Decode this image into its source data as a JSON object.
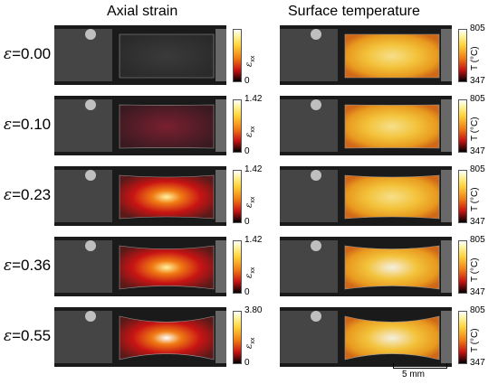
{
  "titles": {
    "left": "Axial strain",
    "right": "Surface temperature"
  },
  "rows": [
    {
      "label": "=0.00",
      "strain_max_label": "",
      "strain_min_label": "0",
      "temp_max_label": "805",
      "temp_min_label": "347",
      "neck": 0.0,
      "strain_intensity": 0.0,
      "temp_intensity": 0.55
    },
    {
      "label": "=0.10",
      "strain_max_label": "1.42",
      "strain_min_label": "0",
      "temp_max_label": "805",
      "temp_min_label": "347",
      "neck": 0.05,
      "strain_intensity": 0.15,
      "temp_intensity": 0.6
    },
    {
      "label": "=0.23",
      "strain_max_label": "1.42",
      "strain_min_label": "0",
      "temp_max_label": "805",
      "temp_min_label": "347",
      "neck": 0.25,
      "strain_intensity": 0.55,
      "temp_intensity": 0.75
    },
    {
      "label": "=0.36",
      "strain_max_label": "1.42",
      "strain_min_label": "0",
      "temp_max_label": "805",
      "temp_min_label": "347",
      "neck": 0.45,
      "strain_intensity": 0.8,
      "temp_intensity": 0.85
    },
    {
      "label": "=0.55",
      "strain_max_label": "3.80",
      "strain_min_label": "0",
      "temp_max_label": "805",
      "temp_min_label": "347",
      "neck": 0.8,
      "strain_intensity": 1.0,
      "temp_intensity": 0.95
    }
  ],
  "strain_axis_symbol": "ε",
  "strain_axis_subscript": "xx",
  "temp_axis_label": "T (°C)",
  "row_symbol": "ε",
  "scale_bar": {
    "label": "5 mm"
  },
  "colors": {
    "background": "#0d0d0d",
    "hot": "#f07d14",
    "cool": "#c81414",
    "bright": "#fff3a0"
  }
}
